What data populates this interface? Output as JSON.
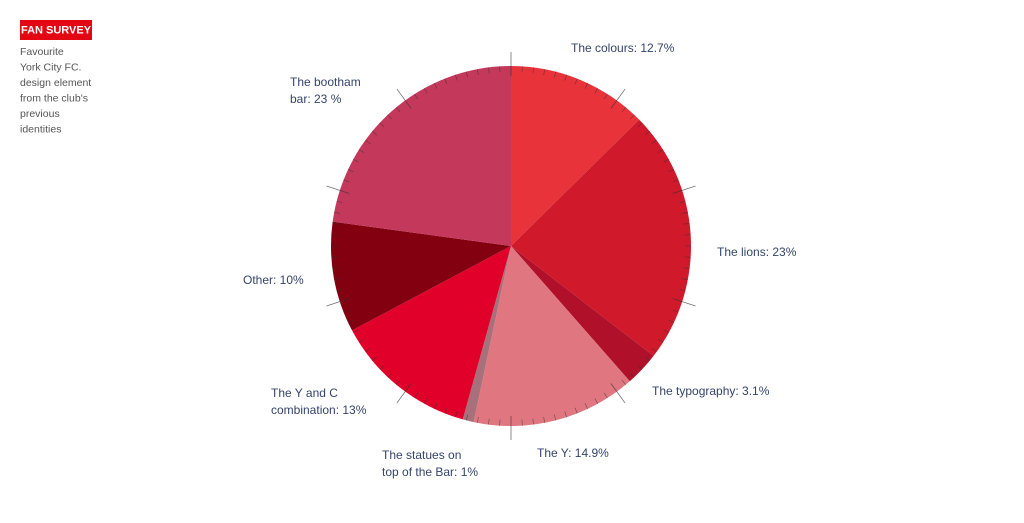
{
  "header": {
    "tag": "FAN SURVEY",
    "subtitle": [
      "Favourite",
      "York City FC.",
      "design element",
      "from the club's",
      "previous",
      "identities"
    ]
  },
  "chart_data": {
    "type": "pie",
    "values": [
      12.7,
      23,
      3.1,
      14.9,
      1,
      13,
      10,
      23
    ],
    "value_labels": [
      [
        "The colours: 12.7%"
      ],
      [
        "The lions: 23%"
      ],
      [
        "The typography: 3.1%"
      ],
      [
        "The Y: 14.9%"
      ],
      [
        "The statues on",
        "top of the Bar: 1%"
      ],
      [
        "The Y and C",
        "combination: 13%"
      ],
      [
        "Other: 10%"
      ],
      [
        "The bootham",
        "bar: 23 %"
      ]
    ],
    "colors": [
      "#e8333a",
      "#d0192b",
      "#b0102a",
      "#e07780",
      "#a8707a",
      "#e0002a",
      "#820010",
      "#c4385c"
    ]
  }
}
